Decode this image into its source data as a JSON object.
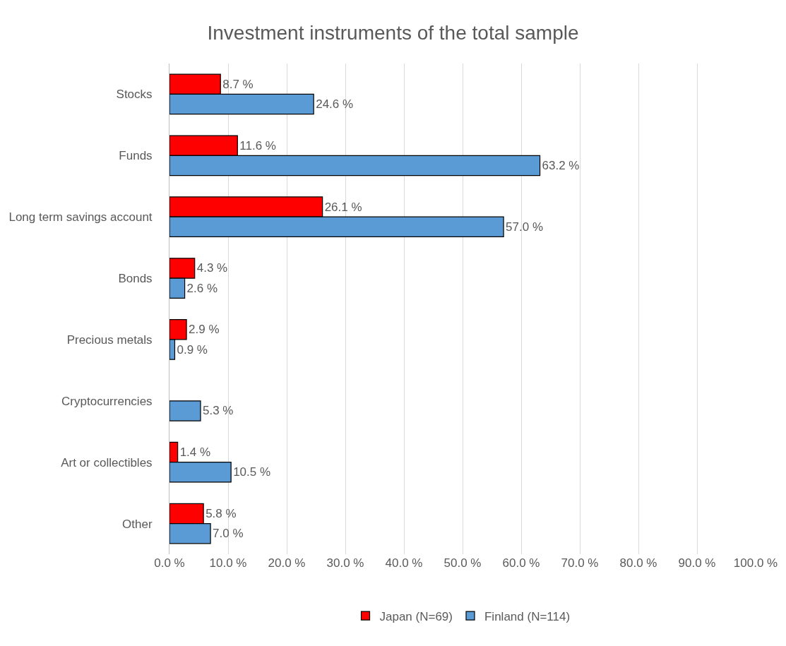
{
  "chart_data": {
    "type": "bar",
    "title": "Investment instruments of the total sample",
    "orientation": "horizontal",
    "categories": [
      "Stocks",
      "Funds",
      "Long term savings account",
      "Bonds",
      "Precious metals",
      "Cryptocurrencies",
      "Art or collectibles",
      "Other"
    ],
    "series": [
      {
        "name": "Japan (N=69)",
        "color": "#ff0000",
        "values": [
          8.7,
          11.6,
          26.1,
          4.3,
          2.9,
          null,
          1.4,
          5.8
        ],
        "value_labels": [
          "8.7 %",
          "11.6 %",
          "26.1 %",
          "4.3 %",
          "2.9 %",
          null,
          "1.4 %",
          "5.8 %"
        ]
      },
      {
        "name": "Finland (N=114)",
        "color": "#5b9bd5",
        "values": [
          24.6,
          63.2,
          57.0,
          2.6,
          0.9,
          5.3,
          10.5,
          7.0
        ],
        "value_labels": [
          "24.6 %",
          "63.2 %",
          "57.0 %",
          "2.6 %",
          "0.9 %",
          "5.3 %",
          "10.5 %",
          "7.0 %"
        ]
      }
    ],
    "xlim": [
      0,
      100
    ],
    "xticks": [
      {
        "value": 0,
        "label": "0.0 %"
      },
      {
        "value": 10,
        "label": "10.0 %"
      },
      {
        "value": 20,
        "label": "20.0 %"
      },
      {
        "value": 30,
        "label": "30.0 %"
      },
      {
        "value": 40,
        "label": "40.0 %"
      },
      {
        "value": 50,
        "label": "50.0 %"
      },
      {
        "value": 60,
        "label": "60.0 %"
      },
      {
        "value": 70,
        "label": "70.0 %"
      },
      {
        "value": 80,
        "label": "80.0 %"
      },
      {
        "value": 90,
        "label": "90.0 %"
      },
      {
        "value": 100,
        "label": "100.0 %"
      }
    ],
    "grid": "x",
    "legend": "bottom"
  }
}
